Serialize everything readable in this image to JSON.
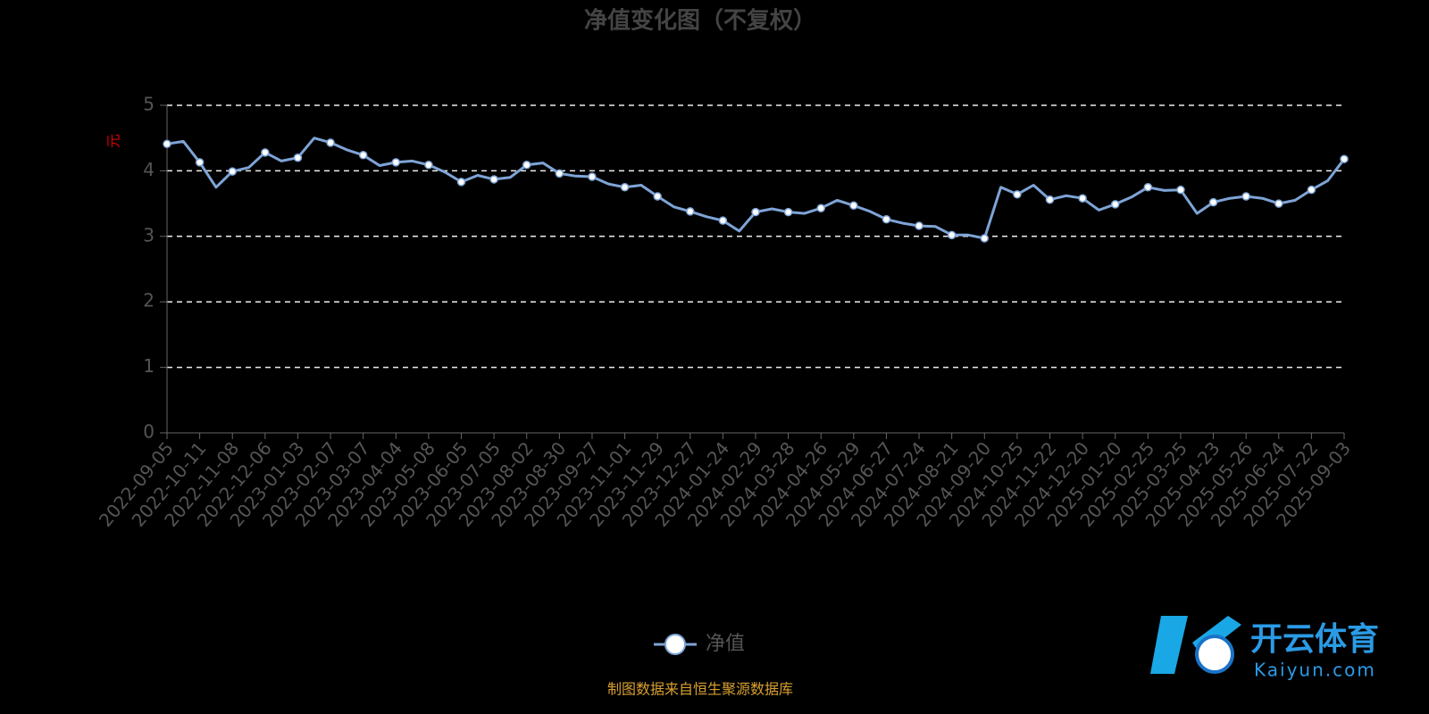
{
  "chart_data": {
    "type": "line",
    "title": "净值变化图（不复权）",
    "y_label": "元",
    "categories": [
      "2022-09-05",
      null,
      "2022-10-11",
      null,
      "2022-11-08",
      null,
      "2022-12-06",
      null,
      "2023-01-03",
      null,
      "2023-02-07",
      null,
      "2023-03-07",
      null,
      "2023-04-04",
      null,
      "2023-05-08",
      null,
      "2023-06-05",
      null,
      "2023-07-05",
      null,
      "2023-08-02",
      null,
      "2023-08-30",
      null,
      "2023-09-27",
      null,
      "2023-11-01",
      null,
      "2023-11-29",
      null,
      "2023-12-27",
      null,
      "2024-01-24",
      null,
      "2024-02-29",
      null,
      "2024-03-28",
      null,
      "2024-04-26",
      null,
      "2024-05-29",
      null,
      "2024-06-27",
      null,
      "2024-07-24",
      null,
      "2024-08-21",
      null,
      "2024-09-20",
      null,
      "2024-10-25",
      null,
      "2024-11-22",
      null,
      "2024-12-20",
      null,
      "2025-01-20",
      null,
      "2025-02-25",
      null,
      "2025-03-25",
      null,
      "2025-04-23",
      null,
      "2025-05-26",
      null,
      "2025-06-24",
      null,
      "2025-07-22",
      null,
      "2025-09-03"
    ],
    "series": [
      {
        "name": "净值",
        "color": "#7ea4d6",
        "values": [
          4.41,
          4.45,
          4.13,
          3.75,
          3.99,
          4.05,
          4.28,
          4.15,
          4.2,
          4.5,
          4.43,
          4.32,
          4.24,
          4.08,
          4.13,
          4.15,
          4.09,
          3.98,
          3.83,
          3.93,
          3.87,
          3.9,
          4.09,
          4.12,
          3.96,
          3.92,
          3.91,
          3.8,
          3.75,
          3.78,
          3.61,
          3.45,
          3.38,
          3.3,
          3.24,
          3.08,
          3.37,
          3.42,
          3.37,
          3.35,
          3.43,
          3.55,
          3.47,
          3.38,
          3.26,
          3.2,
          3.16,
          3.15,
          3.02,
          3.02,
          2.97,
          3.75,
          3.64,
          3.78,
          3.56,
          3.62,
          3.58,
          3.4,
          3.49,
          3.6,
          3.75,
          3.7,
          3.71,
          3.35,
          3.52,
          3.58,
          3.61,
          3.58,
          3.5,
          3.55,
          3.71,
          3.85,
          4.18
        ]
      }
    ],
    "ylim": [
      0,
      5
    ],
    "yticks": [
      0,
      1,
      2,
      3,
      4,
      5
    ],
    "grid": true,
    "source": "制图数据来自恒生聚源数据库"
  },
  "watermark": {
    "name": "开云体育",
    "site": "Kaiyun.com"
  }
}
